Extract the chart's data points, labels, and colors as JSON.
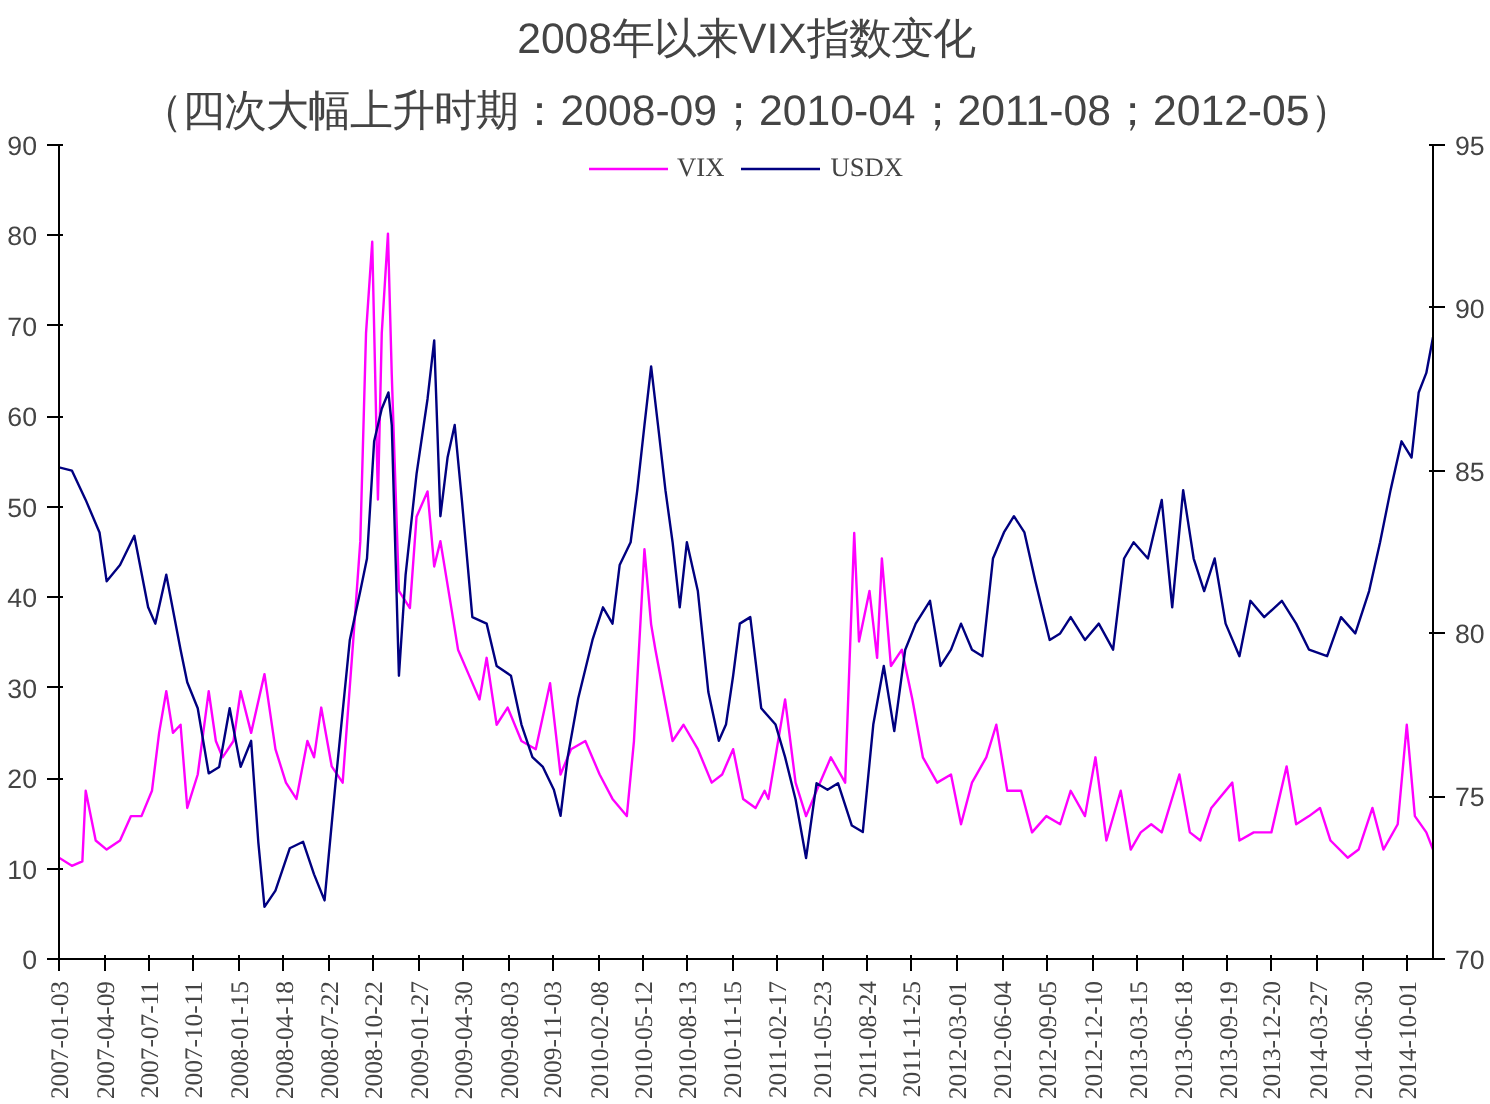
{
  "chart_data": {
    "type": "line",
    "title": "2008年以来VIX指数变化",
    "subtitle": "（四次大幅上升时期：2008-09；2010-04；2011-08；2012-05）",
    "series": [
      {
        "name": "VIX",
        "color": "#ff00ff",
        "x": [
          "2007-01-03",
          "2007-01-30",
          "2007-02-21",
          "2007-02-28",
          "2007-03-21",
          "2007-04-13",
          "2007-05-11",
          "2007-06-03",
          "2007-06-25",
          "2007-07-17",
          "2007-08-01",
          "2007-08-16",
          "2007-08-30",
          "2007-09-15",
          "2007-09-29",
          "2007-10-21",
          "2007-11-13",
          "2007-11-28",
          "2007-12-12",
          "2008-01-04",
          "2008-01-19",
          "2008-02-10",
          "2008-03-09",
          "2008-04-01",
          "2008-04-23",
          "2008-05-15",
          "2008-06-07",
          "2008-06-21",
          "2008-07-06",
          "2008-07-28",
          "2008-08-20",
          "2008-09-11",
          "2008-09-26",
          "2008-10-08",
          "2008-10-21",
          "2008-11-02",
          "2008-11-10",
          "2008-11-23",
          "2008-12-01",
          "2008-12-16",
          "2009-01-08",
          "2009-01-22",
          "2009-02-14",
          "2009-02-28",
          "2009-03-13",
          "2009-04-05",
          "2009-04-19",
          "2009-05-11",
          "2009-06-03",
          "2009-06-18",
          "2009-07-09",
          "2009-08-01",
          "2009-08-30",
          "2009-09-29",
          "2009-10-29",
          "2009-11-20",
          "2009-12-12",
          "2010-01-11",
          "2010-02-10",
          "2010-03-09",
          "2010-04-08",
          "2010-04-23",
          "2010-05-15",
          "2010-05-29",
          "2010-06-07",
          "2010-07-13",
          "2010-08-05",
          "2010-09-04",
          "2010-10-03",
          "2010-10-25",
          "2010-11-17",
          "2010-12-08",
          "2011-01-03",
          "2011-01-22",
          "2011-01-30",
          "2011-03-06",
          "2011-03-28",
          "2011-04-19",
          "2011-05-11",
          "2011-06-10",
          "2011-07-10",
          "2011-07-29",
          "2011-08-08",
          "2011-08-30",
          "2011-09-15",
          "2011-09-25",
          "2011-10-14",
          "2011-11-06",
          "2011-11-28",
          "2011-12-20",
          "2012-01-19",
          "2012-02-17",
          "2012-03-09",
          "2012-04-01",
          "2012-05-01",
          "2012-05-22",
          "2012-06-14",
          "2012-07-13",
          "2012-08-05",
          "2012-09-04",
          "2012-10-03",
          "2012-10-25",
          "2012-11-24",
          "2012-12-16",
          "2013-01-08",
          "2013-02-07",
          "2013-02-28",
          "2013-03-21",
          "2013-04-12",
          "2013-05-04",
          "2013-06-10",
          "2013-07-02",
          "2013-07-24",
          "2013-08-16",
          "2013-09-29",
          "2013-10-14",
          "2013-11-13",
          "2013-12-20",
          "2014-01-21",
          "2014-02-10",
          "2014-03-09",
          "2014-04-01",
          "2014-04-23",
          "2014-05-29",
          "2014-06-21",
          "2014-07-20",
          "2014-08-12",
          "2014-09-11",
          "2014-09-30",
          "2014-10-17",
          "2014-11-10",
          "2014-11-24"
        ],
        "values": [
          11.2,
          10.3,
          10.8,
          18.6,
          13.1,
          12.1,
          13.1,
          15.8,
          15.8,
          18.6,
          25.0,
          29.6,
          25.0,
          25.9,
          16.7,
          20.4,
          29.6,
          24.1,
          22.3,
          24.1,
          29.6,
          25.0,
          31.5,
          23.2,
          19.5,
          17.7,
          24.1,
          22.3,
          27.8,
          21.3,
          19.5,
          35.1,
          46.2,
          69.2,
          79.3,
          50.8,
          69.2,
          80.2,
          64.6,
          40.7,
          38.8,
          48.9,
          51.7,
          43.4,
          46.2,
          38.8,
          34.2,
          31.5,
          28.7,
          33.3,
          25.9,
          27.8,
          24.1,
          23.2,
          30.5,
          20.4,
          23.2,
          24.1,
          20.4,
          17.7,
          15.8,
          24.1,
          45.3,
          37.0,
          34.2,
          24.1,
          25.9,
          23.2,
          19.5,
          20.4,
          23.2,
          17.7,
          16.7,
          18.6,
          17.7,
          28.7,
          19.5,
          15.8,
          18.6,
          22.3,
          19.5,
          47.1,
          35.1,
          40.7,
          33.3,
          44.3,
          32.4,
          34.2,
          28.7,
          22.3,
          19.5,
          20.4,
          14.9,
          19.5,
          22.3,
          25.9,
          18.6,
          18.6,
          14.0,
          15.8,
          14.9,
          18.6,
          15.8,
          22.3,
          13.1,
          18.6,
          12.1,
          14.0,
          14.9,
          14.0,
          20.4,
          14.0,
          13.1,
          16.7,
          19.5,
          13.1,
          14.0,
          14.0,
          21.3,
          14.9,
          15.8,
          16.7,
          13.1,
          11.2,
          12.1,
          16.7,
          12.1,
          14.9,
          25.9,
          15.8,
          14.0,
          12.1
        ]
      },
      {
        "name": "USDX",
        "color": "#000080",
        "axis": "y2",
        "x": [
          "2007-01-03",
          "2007-01-30",
          "2007-02-28",
          "2007-03-29",
          "2007-04-13",
          "2007-05-11",
          "2007-06-10",
          "2007-07-09",
          "2007-07-24",
          "2007-08-16",
          "2007-09-15",
          "2007-09-29",
          "2007-10-21",
          "2007-11-13",
          "2007-12-05",
          "2007-12-27",
          "2008-01-19",
          "2008-02-10",
          "2008-02-25",
          "2008-03-09",
          "2008-04-01",
          "2008-05-01",
          "2008-05-29",
          "2008-06-21",
          "2008-07-13",
          "2008-08-05",
          "2008-09-04",
          "2008-09-26",
          "2008-10-10",
          "2008-10-25",
          "2008-11-10",
          "2008-11-24",
          "2008-12-01",
          "2008-12-08",
          "2008-12-16",
          "2008-12-30",
          "2009-01-22",
          "2009-02-14",
          "2009-02-28",
          "2009-03-13",
          "2009-03-28",
          "2009-04-12",
          "2009-04-27",
          "2009-05-19",
          "2009-06-18",
          "2009-07-09",
          "2009-08-08",
          "2009-08-30",
          "2009-09-22",
          "2009-10-14",
          "2009-11-06",
          "2009-11-20",
          "2009-12-05",
          "2009-12-27",
          "2010-01-26",
          "2010-02-17",
          "2010-03-09",
          "2010-03-24",
          "2010-04-16",
          "2010-04-30",
          "2010-05-15",
          "2010-05-29",
          "2010-06-14",
          "2010-06-28",
          "2010-07-13",
          "2010-07-28",
          "2010-08-12",
          "2010-09-04",
          "2010-09-26",
          "2010-10-18",
          "2010-11-02",
          "2010-11-17",
          "2010-12-01",
          "2010-12-23",
          "2011-01-15",
          "2011-02-14",
          "2011-03-06",
          "2011-03-28",
          "2011-04-19",
          "2011-05-11",
          "2011-06-03",
          "2011-06-25",
          "2011-07-24",
          "2011-08-16",
          "2011-09-07",
          "2011-09-29",
          "2011-10-21",
          "2011-11-13",
          "2011-12-05",
          "2012-01-04",
          "2012-01-26",
          "2012-02-17",
          "2012-03-09",
          "2012-04-01",
          "2012-04-23",
          "2012-05-15",
          "2012-06-07",
          "2012-06-28",
          "2012-07-20",
          "2012-08-12",
          "2012-09-11",
          "2012-10-03",
          "2012-10-25",
          "2012-11-24",
          "2012-12-23",
          "2013-01-22",
          "2013-02-14",
          "2013-03-06",
          "2013-04-05",
          "2013-05-04",
          "2013-05-26",
          "2013-06-18",
          "2013-07-10",
          "2013-08-01",
          "2013-08-23",
          "2013-09-15",
          "2013-10-14",
          "2013-11-06",
          "2013-12-05",
          "2014-01-11",
          "2014-02-10",
          "2014-03-09",
          "2014-04-16",
          "2014-05-15",
          "2014-06-14",
          "2014-07-13",
          "2014-08-05",
          "2014-08-27",
          "2014-09-19",
          "2014-10-10",
          "2014-10-25",
          "2014-11-10",
          "2014-11-24"
        ],
        "values": [
          85.1,
          85.0,
          84.1,
          83.1,
          81.6,
          82.1,
          83.0,
          80.8,
          80.3,
          81.8,
          79.5,
          78.5,
          77.7,
          75.7,
          75.9,
          77.7,
          75.9,
          76.7,
          73.6,
          71.6,
          72.1,
          73.4,
          73.6,
          72.6,
          71.8,
          75.4,
          79.8,
          81.3,
          82.3,
          85.9,
          86.9,
          87.4,
          86.4,
          82.8,
          78.7,
          81.8,
          84.9,
          87.2,
          89.0,
          83.6,
          85.4,
          86.4,
          84.1,
          80.5,
          80.3,
          79.0,
          78.7,
          77.2,
          76.2,
          75.9,
          75.2,
          74.4,
          76.2,
          78.0,
          79.8,
          80.8,
          80.3,
          82.1,
          82.8,
          84.4,
          86.4,
          88.2,
          86.2,
          84.4,
          82.8,
          80.8,
          82.8,
          81.3,
          78.2,
          76.7,
          77.2,
          78.7,
          80.3,
          80.5,
          77.7,
          77.2,
          76.2,
          74.9,
          73.1,
          75.4,
          75.2,
          75.4,
          74.1,
          73.9,
          77.2,
          79.0,
          77.0,
          79.5,
          80.3,
          81.0,
          79.0,
          79.5,
          80.3,
          79.5,
          79.3,
          82.3,
          83.1,
          83.6,
          83.1,
          81.6,
          79.8,
          80.0,
          80.5,
          79.8,
          80.3,
          79.5,
          82.3,
          82.8,
          82.3,
          84.1,
          80.8,
          84.4,
          82.3,
          81.3,
          82.3,
          80.3,
          79.3,
          81.0,
          80.5,
          81.0,
          80.3,
          79.5,
          79.3,
          80.5,
          80.0,
          81.3,
          82.8,
          84.4,
          85.9,
          85.4,
          87.4,
          88.0,
          89.1
        ]
      }
    ],
    "xlim": [
      "2007-01-03",
      "2014-11-24"
    ],
    "xticks": [
      "2007-01-03",
      "2007-04-09",
      "2007-07-11",
      "2007-10-11",
      "2008-01-15",
      "2008-04-18",
      "2008-07-22",
      "2008-10-22",
      "2009-01-27",
      "2009-04-30",
      "2009-08-03",
      "2009-11-03",
      "2010-02-08",
      "2010-05-12",
      "2010-08-13",
      "2010-11-15",
      "2011-02-17",
      "2011-05-23",
      "2011-08-24",
      "2011-11-25",
      "2012-03-01",
      "2012-06-04",
      "2012-09-05",
      "2012-12-10",
      "2013-03-15",
      "2013-06-18",
      "2013-09-19",
      "2013-12-20",
      "2014-03-27",
      "2014-06-30",
      "2014-10-01"
    ],
    "ylim": [
      0,
      90
    ],
    "yticks": [
      0,
      10,
      20,
      30,
      40,
      50,
      60,
      70,
      80,
      90
    ],
    "y2lim": [
      70,
      95
    ],
    "y2ticks": [
      70,
      75,
      80,
      85,
      90,
      95
    ],
    "legend": "top",
    "grid": false,
    "line_style": "solid"
  }
}
